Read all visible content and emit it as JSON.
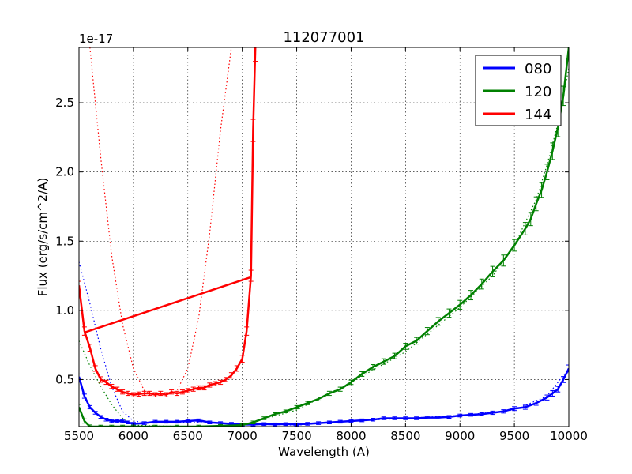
{
  "chart_data": {
    "type": "line",
    "title": "112077001",
    "xlabel": "Wavelength (A)",
    "ylabel": "Flux (erg/s/cm^2/A)",
    "offset_text": "1e-17",
    "xlim": [
      5500,
      10000
    ],
    "ylim": [
      0.16,
      2.9
    ],
    "x_ticks": [
      5500,
      6000,
      6500,
      7000,
      7500,
      8000,
      8500,
      9000,
      9500,
      10000
    ],
    "x_tick_labels": [
      "5500",
      "6000",
      "6500",
      "7000",
      "7500",
      "8000",
      "8500",
      "9000",
      "9500",
      "10000"
    ],
    "y_ticks": [
      0.5,
      1.0,
      1.5,
      2.0,
      2.5
    ],
    "y_tick_labels": [
      "0.5",
      "1.0",
      "1.5",
      "2.0",
      "2.5"
    ],
    "grid": true,
    "legend_position": "top-right",
    "series": [
      {
        "name": "080",
        "color": "#0000ff",
        "x": [
          5500,
          5550,
          5600,
          5650,
          5700,
          5750,
          5800,
          5850,
          5900,
          5950,
          6000,
          6100,
          6200,
          6300,
          6400,
          6500,
          6600,
          6700,
          6800,
          6900,
          7000,
          7100,
          7200,
          7300,
          7400,
          7500,
          7600,
          7700,
          7800,
          7900,
          8000,
          8100,
          8200,
          8300,
          8400,
          8500,
          8600,
          8700,
          8800,
          8900,
          9000,
          9100,
          9200,
          9300,
          9400,
          9500,
          9600,
          9700,
          9800,
          9850,
          9900,
          9950,
          10000
        ],
        "y": [
          0.52,
          0.38,
          0.3,
          0.26,
          0.23,
          0.21,
          0.2,
          0.2,
          0.2,
          0.19,
          0.18,
          0.185,
          0.195,
          0.195,
          0.195,
          0.2,
          0.205,
          0.19,
          0.185,
          0.18,
          0.175,
          0.175,
          0.178,
          0.176,
          0.178,
          0.176,
          0.18,
          0.185,
          0.19,
          0.195,
          0.2,
          0.205,
          0.21,
          0.22,
          0.22,
          0.22,
          0.22,
          0.225,
          0.225,
          0.23,
          0.24,
          0.245,
          0.25,
          0.26,
          0.27,
          0.29,
          0.3,
          0.33,
          0.37,
          0.4,
          0.43,
          0.5,
          0.58
        ],
        "errors": [
          0.02,
          0.015,
          0.012,
          0.01,
          0.01,
          0.01,
          0.01,
          0.01,
          0.01,
          0.01,
          0.01,
          0.01,
          0.01,
          0.01,
          0.01,
          0.01,
          0.01,
          0.01,
          0.01,
          0.01,
          0.01,
          0.01,
          0.01,
          0.01,
          0.01,
          0.01,
          0.01,
          0.01,
          0.01,
          0.01,
          0.01,
          0.01,
          0.01,
          0.01,
          0.01,
          0.01,
          0.01,
          0.01,
          0.01,
          0.01,
          0.01,
          0.01,
          0.01,
          0.012,
          0.012,
          0.014,
          0.015,
          0.016,
          0.018,
          0.02,
          0.02,
          0.022,
          0.025
        ],
        "model_x": [
          5500,
          5600,
          5700,
          5800,
          5900,
          6000,
          6100,
          6500,
          7000,
          7500,
          8000,
          8500,
          9000,
          9500,
          9800,
          10000
        ],
        "model_y": [
          1.35,
          1.05,
          0.72,
          0.45,
          0.27,
          0.2,
          0.19,
          0.19,
          0.18,
          0.17,
          0.2,
          0.22,
          0.24,
          0.28,
          0.38,
          0.58
        ]
      },
      {
        "name": "120",
        "color": "#008000",
        "x": [
          5500,
          5550,
          5600,
          5700,
          5800,
          5900,
          6000,
          6200,
          6400,
          6600,
          6800,
          7000,
          7100,
          7200,
          7300,
          7400,
          7500,
          7600,
          7700,
          7800,
          7900,
          8000,
          8100,
          8200,
          8300,
          8400,
          8500,
          8600,
          8700,
          8800,
          8900,
          9000,
          9100,
          9200,
          9300,
          9400,
          9500,
          9600,
          9650,
          9700,
          9750,
          9800,
          9850,
          9900,
          9950,
          10000
        ],
        "y": [
          0.3,
          0.2,
          0.16,
          0.16,
          0.16,
          0.16,
          0.16,
          0.16,
          0.16,
          0.16,
          0.165,
          0.17,
          0.19,
          0.22,
          0.25,
          0.27,
          0.3,
          0.33,
          0.36,
          0.4,
          0.43,
          0.48,
          0.54,
          0.59,
          0.63,
          0.67,
          0.74,
          0.78,
          0.85,
          0.92,
          0.98,
          1.04,
          1.11,
          1.19,
          1.28,
          1.36,
          1.47,
          1.59,
          1.66,
          1.77,
          1.87,
          2.0,
          2.15,
          2.32,
          2.55,
          2.9
        ],
        "errors": [
          0.02,
          0.015,
          0.012,
          0.01,
          0.01,
          0.01,
          0.01,
          0.01,
          0.01,
          0.01,
          0.01,
          0.01,
          0.01,
          0.01,
          0.01,
          0.01,
          0.012,
          0.012,
          0.014,
          0.015,
          0.015,
          0.016,
          0.017,
          0.018,
          0.02,
          0.02,
          0.022,
          0.024,
          0.026,
          0.028,
          0.03,
          0.032,
          0.034,
          0.036,
          0.038,
          0.04,
          0.042,
          0.045,
          0.048,
          0.05,
          0.053,
          0.056,
          0.06,
          0.065,
          0.07,
          0.08
        ],
        "model_x": [
          5500,
          5600,
          5700,
          5800,
          5900,
          6000,
          6500,
          7000,
          7500,
          8000,
          8500,
          9000,
          9300,
          9500,
          9700,
          9800,
          9900,
          10000
        ],
        "model_y": [
          0.78,
          0.6,
          0.45,
          0.32,
          0.22,
          0.17,
          0.16,
          0.17,
          0.28,
          0.48,
          0.7,
          1.02,
          1.25,
          1.47,
          1.8,
          2.05,
          2.35,
          2.75
        ]
      },
      {
        "name": "144",
        "color": "#ff0000",
        "x": [
          5500,
          5550,
          5600,
          5650,
          5700,
          5750,
          5800,
          5850,
          5900,
          5950,
          6000,
          6050,
          6100,
          6150,
          6200,
          6250,
          6300,
          6350,
          6400,
          6450,
          6500,
          6550,
          6600,
          6650,
          6700,
          6750,
          6800,
          6850,
          6900,
          6950,
          7000,
          7040,
          7080,
          7100,
          7120
        ],
        "y": [
          1.18,
          0.85,
          0.73,
          0.58,
          0.5,
          0.48,
          0.45,
          0.43,
          0.41,
          0.4,
          0.39,
          0.395,
          0.4,
          0.4,
          0.39,
          0.4,
          0.39,
          0.41,
          0.4,
          0.41,
          0.42,
          0.43,
          0.44,
          0.44,
          0.46,
          0.47,
          0.48,
          0.5,
          0.53,
          0.58,
          0.65,
          0.85,
          1.25,
          2.3,
          2.9
        ],
        "errors": [
          0.03,
          0.03,
          0.025,
          0.02,
          0.02,
          0.015,
          0.015,
          0.015,
          0.015,
          0.015,
          0.015,
          0.015,
          0.015,
          0.015,
          0.015,
          0.015,
          0.015,
          0.015,
          0.015,
          0.015,
          0.015,
          0.015,
          0.015,
          0.015,
          0.015,
          0.015,
          0.015,
          0.015,
          0.02,
          0.02,
          0.025,
          0.03,
          0.04,
          0.08,
          0.1
        ],
        "straight_segment": {
          "x": [
            5550,
            7080
          ],
          "y": [
            0.84,
            1.24
          ]
        },
        "model_x": [
          5600,
          5700,
          5800,
          5900,
          6000,
          6100,
          6200,
          6300,
          6400,
          6500,
          6600,
          6700,
          6800,
          6900
        ],
        "model_y": [
          2.9,
          2.1,
          1.4,
          0.9,
          0.58,
          0.42,
          0.39,
          0.39,
          0.42,
          0.58,
          0.95,
          1.55,
          2.3,
          2.9
        ]
      }
    ]
  }
}
